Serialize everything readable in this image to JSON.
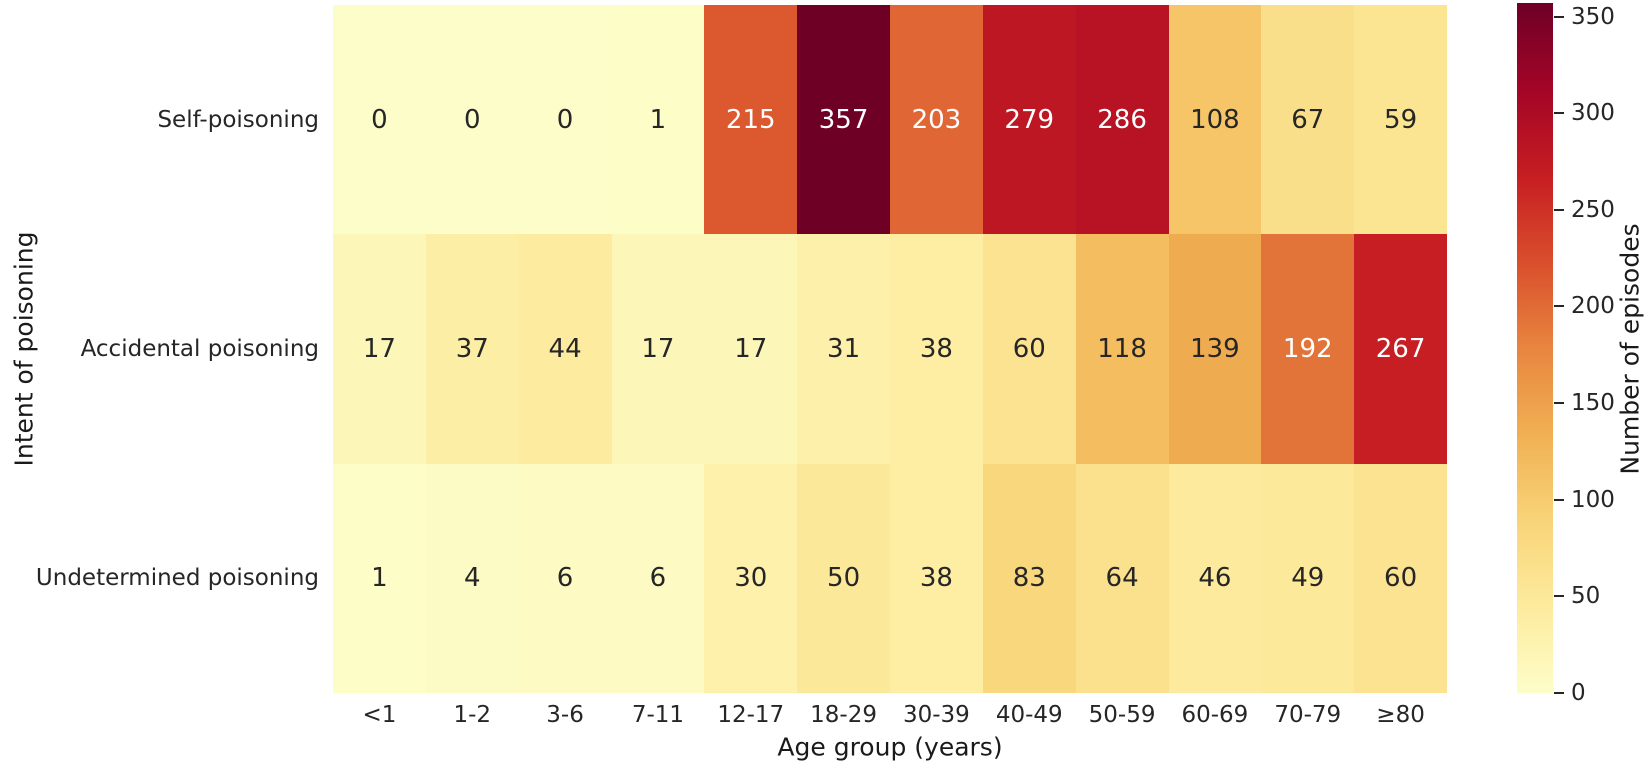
{
  "chart_data": {
    "type": "heatmap",
    "title": "",
    "x_categories": [
      "<1",
      "1-2",
      "3-6",
      "7-11",
      "12-17",
      "18-29",
      "30-39",
      "40-49",
      "50-59",
      "60-69",
      "70-79",
      "≥80"
    ],
    "y_categories": [
      "Self-poisoning",
      "Accidental poisoning",
      "Undetermined poisoning"
    ],
    "values": [
      [
        0,
        0,
        0,
        1,
        215,
        357,
        203,
        279,
        286,
        108,
        67,
        59
      ],
      [
        17,
        37,
        44,
        17,
        17,
        31,
        38,
        60,
        118,
        139,
        192,
        267
      ],
      [
        1,
        4,
        6,
        6,
        30,
        50,
        38,
        83,
        64,
        46,
        49,
        60
      ]
    ],
    "vmin": 0,
    "vmax": 357,
    "xlabel": "Age group (years)",
    "ylabel": "Intent of poisoning",
    "colorbar_label": "Number of episodes",
    "colorbar_ticks": [
      0,
      50,
      100,
      150,
      200,
      250,
      300,
      350
    ],
    "colormap": "YlOrRd",
    "colormap_anchors": [
      "#fdfdc9",
      "#fdeb9e",
      "#f8d478",
      "#f0b052",
      "#e8853f",
      "#d94e2c",
      "#c61d22",
      "#a30527",
      "#6e0026"
    ],
    "annotation_colors": {
      "dark": "#262626",
      "light": "#ffffff"
    },
    "grid": false,
    "legend_position": "right-colorbar"
  }
}
